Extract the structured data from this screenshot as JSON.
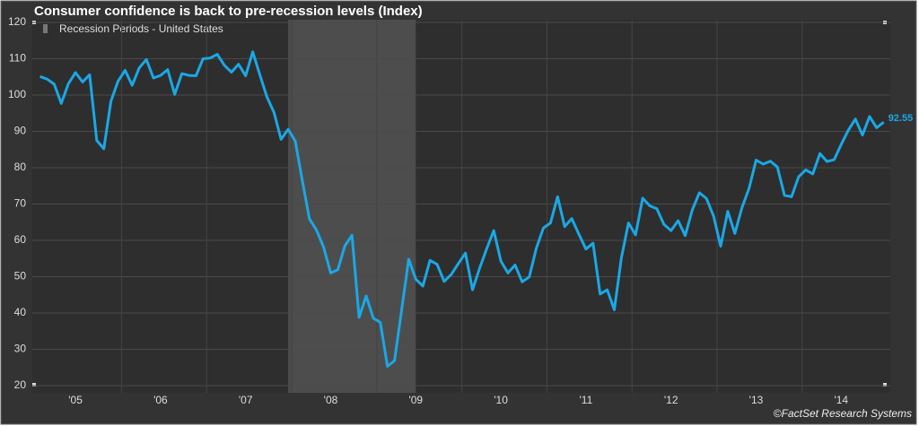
{
  "chart_data": {
    "type": "line",
    "title": "Consumer confidence is back to pre-recession levels (Index)",
    "categories": [
      null,
      null,
      null,
      null,
      null,
      "'05",
      null,
      null,
      null,
      null,
      null,
      null,
      null,
      null,
      null,
      null,
      null,
      "'06",
      null,
      null,
      null,
      null,
      null,
      null,
      null,
      null,
      null,
      null,
      null,
      "'07",
      null,
      null,
      null,
      null,
      null,
      null,
      null,
      null,
      null,
      null,
      null,
      "'08",
      null,
      null,
      null,
      null,
      null,
      null,
      null,
      null,
      null,
      null,
      null,
      "'09",
      null,
      null,
      null,
      null,
      null,
      null,
      null,
      null,
      null,
      null,
      null,
      "'10",
      null,
      null,
      null,
      null,
      null,
      null,
      null,
      null,
      null,
      null,
      null,
      "'11",
      null,
      null,
      null,
      null,
      null,
      null,
      null,
      null,
      null,
      null,
      null,
      "'12",
      null,
      null,
      null,
      null,
      null,
      null,
      null,
      null,
      null,
      null,
      null,
      "'13",
      null,
      null,
      null,
      null,
      null,
      null,
      null,
      null,
      null,
      null,
      null,
      "'14",
      null,
      null,
      null,
      null,
      null,
      null
    ],
    "series": [
      {
        "name": "Consumer Confidence",
        "color": "#1aa8e6",
        "values": [
          105.1,
          104.4,
          103.0,
          97.7,
          103.1,
          106.2,
          103.6,
          105.6,
          87.5,
          85.2,
          98.3,
          103.8,
          106.8,
          102.7,
          107.5,
          109.8,
          104.7,
          105.4,
          107.0,
          100.2,
          105.9,
          105.4,
          105.3,
          110.0,
          110.2,
          111.2,
          108.2,
          106.3,
          108.5,
          105.3,
          111.9,
          105.6,
          99.5,
          95.2,
          87.8,
          90.6,
          87.3,
          76.4,
          65.9,
          62.8,
          58.1,
          51.0,
          51.9,
          58.5,
          61.4,
          38.8,
          44.7,
          38.6,
          37.4,
          25.3,
          26.9,
          40.8,
          54.8,
          49.3,
          47.4,
          54.5,
          53.4,
          48.7,
          50.6,
          53.6,
          56.5,
          46.4,
          52.3,
          57.7,
          62.7,
          54.3,
          51.0,
          53.2,
          48.6,
          49.9,
          57.8,
          63.4,
          64.8,
          72.0,
          63.8,
          66.0,
          61.7,
          57.6,
          59.2,
          45.2,
          46.4,
          40.9,
          55.2,
          64.8,
          61.5,
          71.6,
          69.5,
          68.7,
          64.4,
          62.7,
          65.4,
          61.3,
          68.4,
          73.1,
          71.5,
          66.7,
          58.4,
          68.0,
          61.9,
          69.0,
          74.3,
          82.1,
          81.0,
          81.8,
          80.2,
          72.4,
          72.0,
          77.5,
          79.4,
          78.3,
          83.9,
          81.7,
          82.2,
          86.4,
          90.3,
          93.4,
          89.0,
          94.1,
          91.0,
          92.55
        ]
      }
    ],
    "bands": [
      {
        "name": "Recession Periods - United States",
        "color": "#4d4d4d",
        "from": 35,
        "to": 53
      }
    ],
    "ylim": [
      20,
      120
    ],
    "yticks": [
      20,
      30,
      40,
      50,
      60,
      70,
      80,
      90,
      100,
      110,
      120
    ],
    "grid": true,
    "source": "©FactSet Research Systems"
  }
}
